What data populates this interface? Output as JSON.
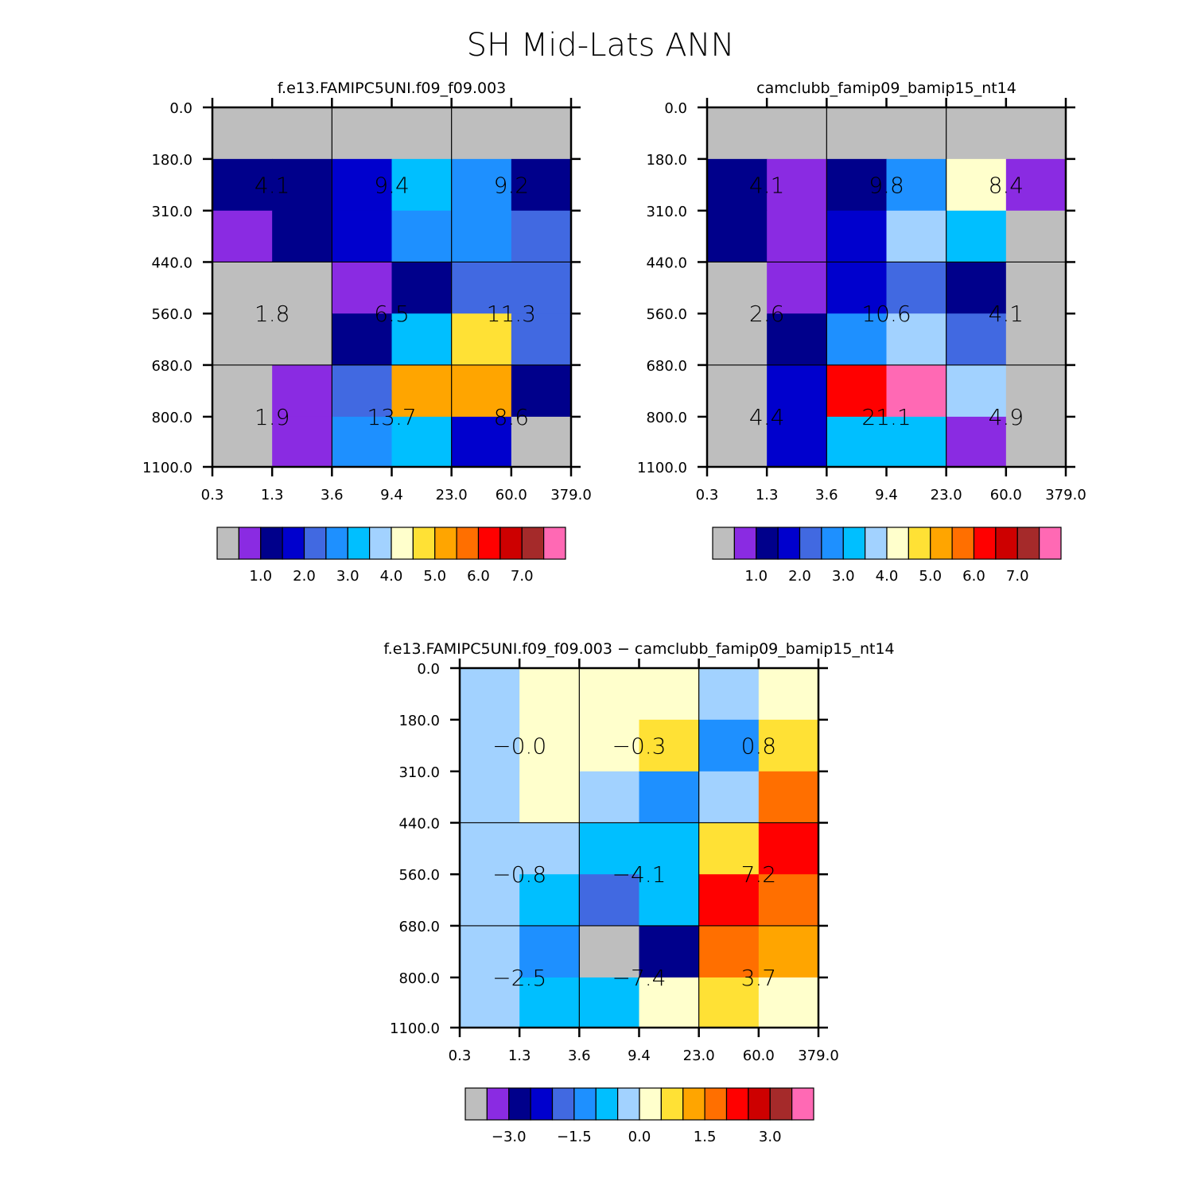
{
  "title": "SH Mid-Lats ANN",
  "colors": {
    "missing": "#BEBEBE",
    "axis": "#000000"
  },
  "chart_data": [
    {
      "type": "heatmap",
      "title": "f.e13.FAMIPC5UNI.f09_f09.003",
      "xlabel": "",
      "ylabel": "",
      "x_tick_labels": [
        "0.3",
        "1.3",
        "3.6",
        "9.4",
        "23.0",
        "60.0",
        "379.0"
      ],
      "y_tick_labels": [
        "0.0",
        "180.0",
        "310.0",
        "440.0",
        "560.0",
        "680.0",
        "800.0",
        "1100.0"
      ],
      "cell_colors": [
        [
          "#BEBEBE",
          "#BEBEBE",
          "#BEBEBE",
          "#BEBEBE",
          "#BEBEBE",
          "#BEBEBE"
        ],
        [
          "#00008B",
          "#00008B",
          "#0000CD",
          "#00BFFF",
          "#1E90FF",
          "#00008B"
        ],
        [
          "#8A2BE2",
          "#00008B",
          "#0000CD",
          "#1E90FF",
          "#1E90FF",
          "#4169E1"
        ],
        [
          "#BEBEBE",
          "#BEBEBE",
          "#8A2BE2",
          "#00008B",
          "#4169E1",
          "#4169E1"
        ],
        [
          "#BEBEBE",
          "#BEBEBE",
          "#00008B",
          "#00BFFF",
          "#FFE135",
          "#4169E1"
        ],
        [
          "#BEBEBE",
          "#8A2BE2",
          "#4169E1",
          "#FFA500",
          "#FFA500",
          "#00008B"
        ],
        [
          "#BEBEBE",
          "#8A2BE2",
          "#1E90FF",
          "#00BFFF",
          "#0000CD",
          "#BEBEBE"
        ]
      ],
      "block_values": [
        [
          "4.1",
          "9.4",
          "9.2"
        ],
        [
          "1.8",
          "6.5",
          "11.3"
        ],
        [
          "1.9",
          "13.7",
          "8.6"
        ]
      ],
      "colorbar": {
        "colors": [
          "#BEBEBE",
          "#8A2BE2",
          "#00008B",
          "#0000CD",
          "#4169E1",
          "#1E90FF",
          "#00BFFF",
          "#A2D2FF",
          "#FFFFCC",
          "#FFE135",
          "#FFA500",
          "#FF6F00",
          "#FF0000",
          "#CD0000",
          "#A52A2A",
          "#FF69B4"
        ],
        "labels": [
          "1.0",
          "2.0",
          "3.0",
          "4.0",
          "5.0",
          "6.0",
          "7.0"
        ],
        "levels": [
          0.5,
          1.0,
          1.5,
          2.0,
          2.5,
          3.0,
          3.5,
          4.0,
          4.5,
          5.0,
          5.5,
          6.0,
          6.5,
          7.0,
          7.5
        ]
      }
    },
    {
      "type": "heatmap",
      "title": "camclubb_famip09_bamip15_nt14",
      "xlabel": "",
      "ylabel": "",
      "x_tick_labels": [
        "0.3",
        "1.3",
        "3.6",
        "9.4",
        "23.0",
        "60.0",
        "379.0"
      ],
      "y_tick_labels": [
        "0.0",
        "180.0",
        "310.0",
        "440.0",
        "560.0",
        "680.0",
        "800.0",
        "1100.0"
      ],
      "cell_colors": [
        [
          "#BEBEBE",
          "#BEBEBE",
          "#BEBEBE",
          "#BEBEBE",
          "#BEBEBE",
          "#BEBEBE"
        ],
        [
          "#00008B",
          "#8A2BE2",
          "#00008B",
          "#1E90FF",
          "#FFFFCC",
          "#8A2BE2"
        ],
        [
          "#00008B",
          "#8A2BE2",
          "#0000CD",
          "#A2D2FF",
          "#00BFFF",
          "#BEBEBE"
        ],
        [
          "#BEBEBE",
          "#8A2BE2",
          "#0000CD",
          "#4169E1",
          "#00008B",
          "#BEBEBE"
        ],
        [
          "#BEBEBE",
          "#00008B",
          "#1E90FF",
          "#A2D2FF",
          "#4169E1",
          "#BEBEBE"
        ],
        [
          "#BEBEBE",
          "#0000CD",
          "#FF0000",
          "#FF69B4",
          "#A2D2FF",
          "#BEBEBE"
        ],
        [
          "#BEBEBE",
          "#0000CD",
          "#00BFFF",
          "#00BFFF",
          "#8A2BE2",
          "#BEBEBE"
        ]
      ],
      "block_values": [
        [
          "4.1",
          "9.8",
          "8.4"
        ],
        [
          "2.6",
          "10.6",
          "4.1"
        ],
        [
          "4.4",
          "21.1",
          "4.9"
        ]
      ],
      "colorbar": {
        "colors": [
          "#BEBEBE",
          "#8A2BE2",
          "#00008B",
          "#0000CD",
          "#4169E1",
          "#1E90FF",
          "#00BFFF",
          "#A2D2FF",
          "#FFFFCC",
          "#FFE135",
          "#FFA500",
          "#FF6F00",
          "#FF0000",
          "#CD0000",
          "#A52A2A",
          "#FF69B4"
        ],
        "labels": [
          "1.0",
          "2.0",
          "3.0",
          "4.0",
          "5.0",
          "6.0",
          "7.0"
        ],
        "levels": [
          0.5,
          1.0,
          1.5,
          2.0,
          2.5,
          3.0,
          3.5,
          4.0,
          4.5,
          5.0,
          5.5,
          6.0,
          6.5,
          7.0,
          7.5
        ]
      }
    },
    {
      "type": "heatmap",
      "title": "f.e13.FAMIPC5UNI.f09_f09.003 - camclubb_famip09_bamip15_nt14",
      "xlabel": "",
      "ylabel": "",
      "x_tick_labels": [
        "0.3",
        "1.3",
        "3.6",
        "9.4",
        "23.0",
        "60.0",
        "379.0"
      ],
      "y_tick_labels": [
        "0.0",
        "180.0",
        "310.0",
        "440.0",
        "560.0",
        "680.0",
        "800.0",
        "1100.0"
      ],
      "cell_colors": [
        [
          "#A2D2FF",
          "#FFFFCC",
          "#FFFFCC",
          "#FFFFCC",
          "#A2D2FF",
          "#FFFFCC"
        ],
        [
          "#A2D2FF",
          "#FFFFCC",
          "#FFFFCC",
          "#FFE135",
          "#1E90FF",
          "#FFE135"
        ],
        [
          "#A2D2FF",
          "#FFFFCC",
          "#A2D2FF",
          "#1E90FF",
          "#A2D2FF",
          "#FF6F00"
        ],
        [
          "#A2D2FF",
          "#A2D2FF",
          "#00BFFF",
          "#00BFFF",
          "#FFE135",
          "#FF0000"
        ],
        [
          "#A2D2FF",
          "#00BFFF",
          "#4169E1",
          "#00BFFF",
          "#FF0000",
          "#FF6F00"
        ],
        [
          "#A2D2FF",
          "#1E90FF",
          "#BEBEBE",
          "#00008B",
          "#FF6F00",
          "#FFA500"
        ],
        [
          "#A2D2FF",
          "#00BFFF",
          "#00BFFF",
          "#FFFFCC",
          "#FFE135",
          "#FFFFCC"
        ]
      ],
      "block_values": [
        [
          "-0.0",
          "-0.3",
          "0.8"
        ],
        [
          "-0.8",
          "-4.1",
          "7.2"
        ],
        [
          "-2.5",
          "-7.4",
          "3.7"
        ]
      ],
      "colorbar": {
        "colors": [
          "#BEBEBE",
          "#8A2BE2",
          "#00008B",
          "#0000CD",
          "#4169E1",
          "#1E90FF",
          "#00BFFF",
          "#A2D2FF",
          "#FFFFCC",
          "#FFE135",
          "#FFA500",
          "#FF6F00",
          "#FF0000",
          "#CD0000",
          "#A52A2A",
          "#FF69B4"
        ],
        "labels": [
          "-3.0",
          "-1.5",
          "0.0",
          "1.5",
          "3.0"
        ],
        "levels": [
          -3.5,
          -3.0,
          -2.5,
          -2.0,
          -1.5,
          -1.0,
          -0.5,
          0.0,
          0.5,
          1.0,
          1.5,
          2.0,
          2.5,
          3.0,
          3.5
        ]
      }
    }
  ]
}
